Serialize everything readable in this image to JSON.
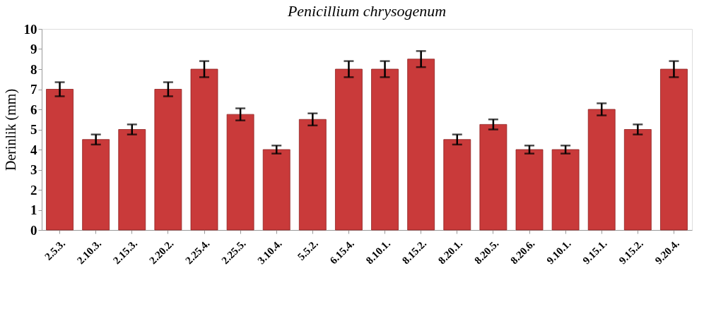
{
  "chart_data": {
    "type": "bar",
    "title": "Penicillium chrysogenum",
    "ylabel": "Derinlik  (mm)",
    "categories": [
      "2.5.3.",
      "2.10.3.",
      "2.15.3.",
      "2.20.2.",
      "2.25.4.",
      "2.25.5.",
      "3.10.4.",
      "5.5.2.",
      "6.15.4.",
      "8.10.1.",
      "8.15.2.",
      "8.20.1.",
      "8.20.5.",
      "8.20.6.",
      "9.10.1.",
      "9.15.1.",
      "9.15.2.",
      "9.20.4."
    ],
    "values": [
      7,
      4.5,
      5,
      7,
      8,
      5.75,
      4,
      5.5,
      8,
      8,
      8.5,
      4.5,
      5.25,
      4,
      4,
      6,
      5,
      8
    ],
    "errors": [
      0.35,
      0.25,
      0.25,
      0.35,
      0.4,
      0.3,
      0.2,
      0.3,
      0.4,
      0.4,
      0.4,
      0.25,
      0.25,
      0.2,
      0.2,
      0.3,
      0.25,
      0.4
    ],
    "color": "#c93a3a",
    "ylim": [
      0,
      10
    ],
    "yticks": [
      0,
      1,
      2,
      3,
      4,
      5,
      6,
      7,
      8,
      9,
      10
    ],
    "grid": false
  }
}
